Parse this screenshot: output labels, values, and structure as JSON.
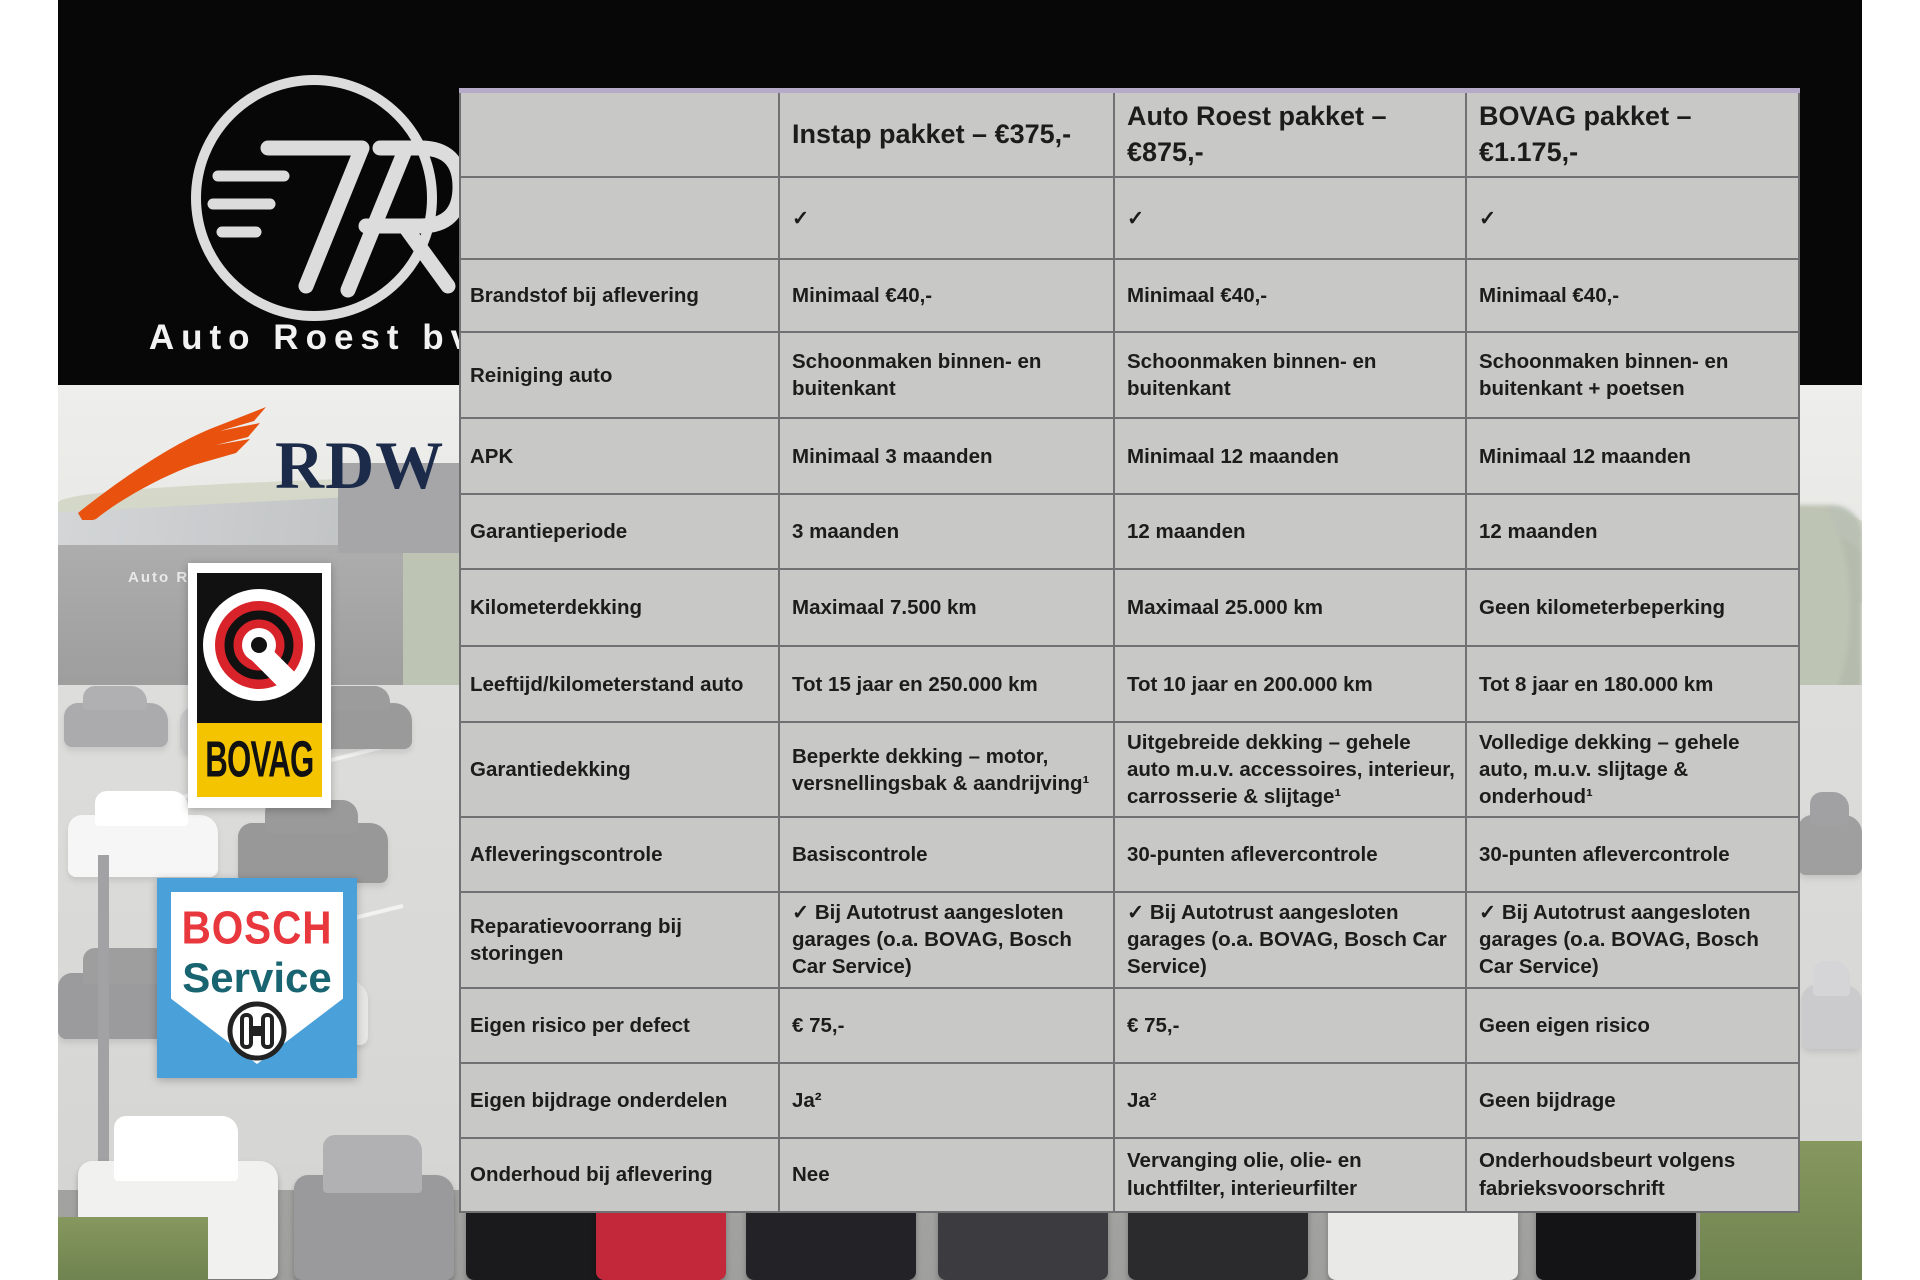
{
  "branding": {
    "dealer_name": "Auto Roest bv"
  },
  "icons": {
    "auto_roest_logo": "7R-circle-monogram",
    "rdw_wing": "orange-wing-icon",
    "bovag_mark": "wheel-wrench-icon",
    "bosch_armature": "armature-circle-icon",
    "check": "✓"
  },
  "logos": {
    "rdw": {
      "text": "RDW",
      "wing_color": "#e8510e",
      "text_color": "#1c2b4a"
    },
    "bovag": {
      "text": "BOVAG",
      "yellow": "#f5c400",
      "red": "#d8232a"
    },
    "bosch": {
      "line1": "BOSCH",
      "line2": "Service",
      "blue": "#4aa0d8",
      "red": "#e8373d",
      "teal": "#186470"
    }
  },
  "photo": {
    "building_sign": "Auto Ro"
  },
  "colors": {
    "banner": "#070707",
    "table_bg": "#c8c8c6",
    "grid_line": "#717174",
    "table_top_border": "#b5abc8",
    "text": "#1c1c1c"
  },
  "table": {
    "header": {
      "col0": "",
      "col1": "Instap pakket – €375,-",
      "col2": "Auto Roest pakket – €875,-",
      "col3": "BOVAG pakket – €1.175,-"
    },
    "rows": [
      {
        "label": "",
        "cells": [
          "✓",
          "✓",
          "✓"
        ]
      },
      {
        "label": "Brandstof bij aflevering",
        "cells": [
          "Minimaal €40,-",
          "Minimaal €40,-",
          "Minimaal €40,-"
        ]
      },
      {
        "label": "Reiniging auto",
        "cells": [
          "Schoonmaken binnen- en buitenkant",
          "Schoonmaken binnen- en buitenkant",
          "Schoonmaken binnen- en buitenkant + poetsen"
        ]
      },
      {
        "label": "APK",
        "cells": [
          "Minimaal 3 maanden",
          "Minimaal 12 maanden",
          "Minimaal 12 maanden"
        ]
      },
      {
        "label": "Garantieperiode",
        "cells": [
          "3 maanden",
          "12 maanden",
          "12 maanden"
        ]
      },
      {
        "label": "Kilometerdekking",
        "cells": [
          "Maximaal 7.500 km",
          "Maximaal 25.000 km",
          "Geen kilometerbeperking"
        ]
      },
      {
        "label": "Leeftijd/kilometerstand auto",
        "cells": [
          "Tot 15 jaar en 250.000 km",
          "Tot 10 jaar en 200.000 km",
          "Tot 8 jaar en 180.000 km"
        ]
      },
      {
        "label": "Garantiedekking",
        "cells": [
          "Beperkte dekking – motor, versnellingsbak & aandrijving¹",
          "Uitgebreide dekking – gehele auto m.u.v. accessoires, interieur, carrosserie & slijtage¹",
          "Volledige dekking – gehele auto, m.u.v. slijtage & onderhoud¹"
        ]
      },
      {
        "label": "Afleveringscontrole",
        "cells": [
          "Basiscontrole",
          "30-punten aflevercontrole",
          "30-punten aflevercontrole"
        ]
      },
      {
        "label": "Reparatievoorrang bij storingen",
        "cells": [
          "✓ Bij Autotrust aangesloten garages (o.a. BOVAG, Bosch Car Service)",
          "✓ Bij Autotrust aangesloten garages (o.a. BOVAG, Bosch Car Service)",
          "✓ Bij Autotrust aangesloten garages (o.a. BOVAG, Bosch Car Service)"
        ]
      },
      {
        "label": "Eigen risico per defect",
        "cells": [
          "€ 75,-",
          "€ 75,-",
          "Geen eigen risico"
        ]
      },
      {
        "label": "Eigen bijdrage onderdelen",
        "cells": [
          "Ja²",
          "Ja²",
          "Geen bijdrage"
        ]
      },
      {
        "label": "Onderhoud bij aflevering",
        "cells": [
          "Nee",
          "Vervanging olie, olie- en luchtfilter, interieurfilter",
          "Onderhoudsbeurt volgens fabrieksvoorschrift"
        ]
      }
    ]
  }
}
